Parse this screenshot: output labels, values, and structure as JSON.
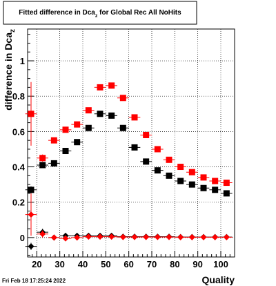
{
  "chart_data": {
    "type": "scatter",
    "title": "Fitted difference in Dca",
    "title_sub": "z",
    "title_suffix": " for Global Rec All NoHits",
    "xlabel": "Quality",
    "ylabel": "difference in Dca",
    "ylabel_sub": "z",
    "xlim": [
      16,
      106
    ],
    "ylim": [
      -0.11,
      1.18
    ],
    "xticks": [
      20,
      30,
      40,
      50,
      60,
      70,
      80,
      90,
      100
    ],
    "yticks": [
      0,
      0.2,
      0.4,
      0.6,
      0.8,
      1
    ],
    "ytick_labels": [
      "0",
      "0.2",
      "0.4",
      "0.6",
      "0.8",
      "1"
    ],
    "grid": true,
    "footer": "Fri Feb 18 17:25:24 2022",
    "series": [
      {
        "color": "#000000",
        "marker": "square",
        "x": [
          17.5,
          22.5,
          27.5,
          32.5,
          37.5,
          42.5,
          47.5,
          52.5,
          57.5,
          62.5,
          67.5,
          72.5,
          77.5,
          82.5,
          87.5,
          92.5,
          97.5,
          102.5
        ],
        "y": [
          0.27,
          0.41,
          0.42,
          0.49,
          0.54,
          0.62,
          0.7,
          0.69,
          0.62,
          0.51,
          0.43,
          0.38,
          0.35,
          0.32,
          0.3,
          0.28,
          0.27,
          0.25
        ],
        "yerr": [
          0.02,
          0.01,
          0.01,
          0.01,
          0.01,
          0.01,
          0.01,
          0.01,
          0.01,
          0.01,
          0.01,
          0.01,
          0.01,
          0.01,
          0.01,
          0.01,
          0.01,
          0.01
        ]
      },
      {
        "color": "#ff0000",
        "marker": "square",
        "x": [
          17.5,
          22.5,
          27.5,
          32.5,
          37.5,
          42.5,
          47.5,
          52.5,
          57.5,
          62.5,
          67.5,
          72.5,
          77.5,
          82.5,
          87.5,
          92.5,
          97.5,
          102.5
        ],
        "y": [
          0.7,
          0.45,
          0.55,
          0.61,
          0.64,
          0.72,
          0.85,
          0.86,
          0.79,
          0.68,
          0.58,
          0.5,
          0.44,
          0.4,
          0.37,
          0.34,
          0.32,
          0.31
        ],
        "yerr": [
          0.18,
          0.02,
          0.01,
          0.01,
          0.01,
          0.01,
          0.01,
          0.01,
          0.01,
          0.01,
          0.01,
          0.01,
          0.01,
          0.01,
          0.01,
          0.01,
          0.01,
          0.01
        ]
      },
      {
        "color": "#000000",
        "marker": "diamond",
        "x": [
          17.5,
          22.5,
          27.5,
          32.5,
          37.5,
          42.5,
          47.5,
          52.5,
          57.5,
          62.5,
          67.5,
          72.5,
          77.5,
          82.5,
          87.5,
          92.5,
          97.5,
          102.5
        ],
        "y": [
          -0.05,
          0.03,
          0.0,
          0.01,
          0.01,
          0.01,
          0.01,
          0.01,
          0.005,
          0.005,
          0.005,
          0.005,
          0.005,
          0.003,
          0.003,
          0.003,
          0.003,
          0.003
        ],
        "yerr": [
          0.02,
          0.02,
          0.01,
          0.01,
          0.01,
          0.01,
          0.01,
          0.005,
          0.005,
          0.005,
          0.005,
          0.005,
          0.005,
          0.005,
          0.005,
          0.005,
          0.005,
          0.005
        ]
      },
      {
        "color": "#ff0000",
        "marker": "diamond",
        "x": [
          17.5,
          22.5,
          27.5,
          32.5,
          37.5,
          42.5,
          47.5,
          52.5,
          57.5,
          62.5,
          67.5,
          72.5,
          77.5,
          82.5,
          87.5,
          92.5,
          97.5,
          102.5
        ],
        "y": [
          0.13,
          0.02,
          0.0,
          -0.005,
          0.0,
          0.005,
          0.005,
          0.005,
          0.003,
          0.003,
          0.003,
          0.003,
          0.003,
          0.002,
          0.002,
          0.002,
          0.002,
          0.002
        ],
        "yerr": [
          0.12,
          0.02,
          0.01,
          0.01,
          0.01,
          0.01,
          0.005,
          0.005,
          0.005,
          0.005,
          0.005,
          0.005,
          0.005,
          0.005,
          0.005,
          0.005,
          0.005,
          0.005
        ]
      }
    ]
  }
}
